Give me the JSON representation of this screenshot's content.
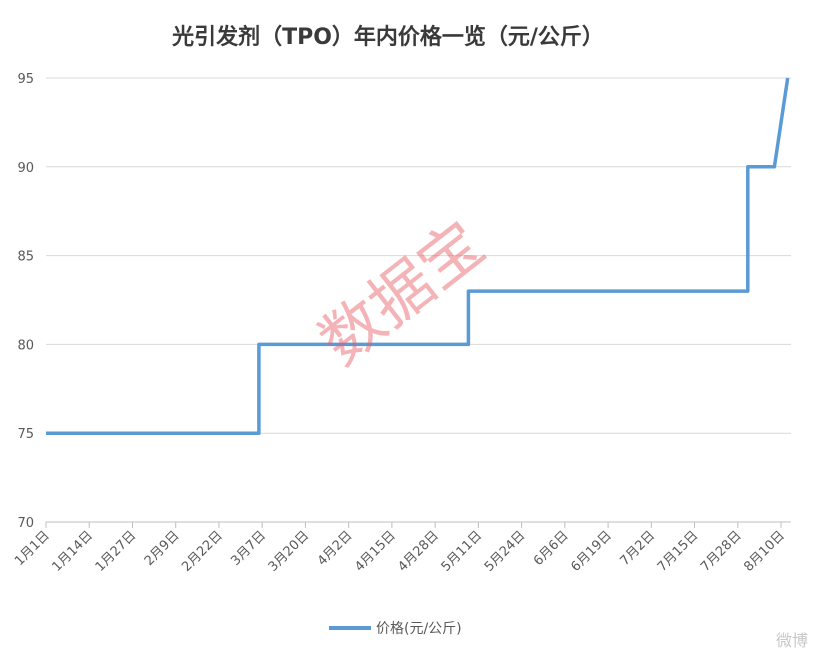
{
  "chart_data": {
    "type": "line",
    "title": "光引发剂（TPO）年内价格一览（元/公斤）",
    "xlabel": "",
    "ylabel": "",
    "ylim": [
      70,
      95
    ],
    "yticks": [
      70,
      75,
      80,
      85,
      90,
      95
    ],
    "x_range": [
      "1月1日",
      "8月12日"
    ],
    "xticks": [
      "1月1日",
      "1月14日",
      "1月27日",
      "2月9日",
      "2月22日",
      "3月7日",
      "3月20日",
      "4月2日",
      "4月15日",
      "4月28日",
      "5月11日",
      "5月24日",
      "6月6日",
      "6月19日",
      "7月2日",
      "7月15日",
      "7月28日",
      "8月10日"
    ],
    "grid": true,
    "legend": "bottom",
    "series": [
      {
        "name": "价格(元/公斤)",
        "color": "#5b9bd5",
        "points": [
          {
            "x": "1月1日",
            "y": 75
          },
          {
            "x": "3月6日",
            "y": 75
          },
          {
            "x": "3月6日",
            "y": 80
          },
          {
            "x": "5月8日",
            "y": 80
          },
          {
            "x": "5月8日",
            "y": 83
          },
          {
            "x": "7月31日",
            "y": 83
          },
          {
            "x": "7月31日",
            "y": 90
          },
          {
            "x": "8月8日",
            "y": 90
          },
          {
            "x": "8月12日",
            "y": 95
          }
        ]
      }
    ]
  },
  "watermark": "数据宝",
  "corner_mark": "微博"
}
